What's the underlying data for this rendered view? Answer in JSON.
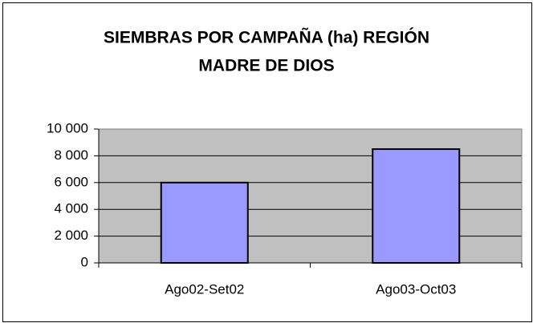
{
  "chart_data": {
    "type": "bar",
    "title": [
      "SIEMBRAS POR CAMPAÑA (ha) REGIÓN",
      "MADRE DE DIOS"
    ],
    "categories": [
      "Ago02-Set02",
      "Ago03-Oct03"
    ],
    "values": [
      6000,
      8500
    ],
    "color": "#9999ff",
    "ylim": [
      0,
      10000
    ],
    "yticks": [
      0,
      {
        "value": 2000,
        "label": "2 000"
      },
      {
        "value": 4000,
        "label": "4 000"
      },
      {
        "value": 6000,
        "label": "6 000"
      },
      {
        "value": 8000,
        "label": "8 000"
      },
      {
        "value": 10000,
        "label": "10 000"
      }
    ],
    "grid": true
  }
}
